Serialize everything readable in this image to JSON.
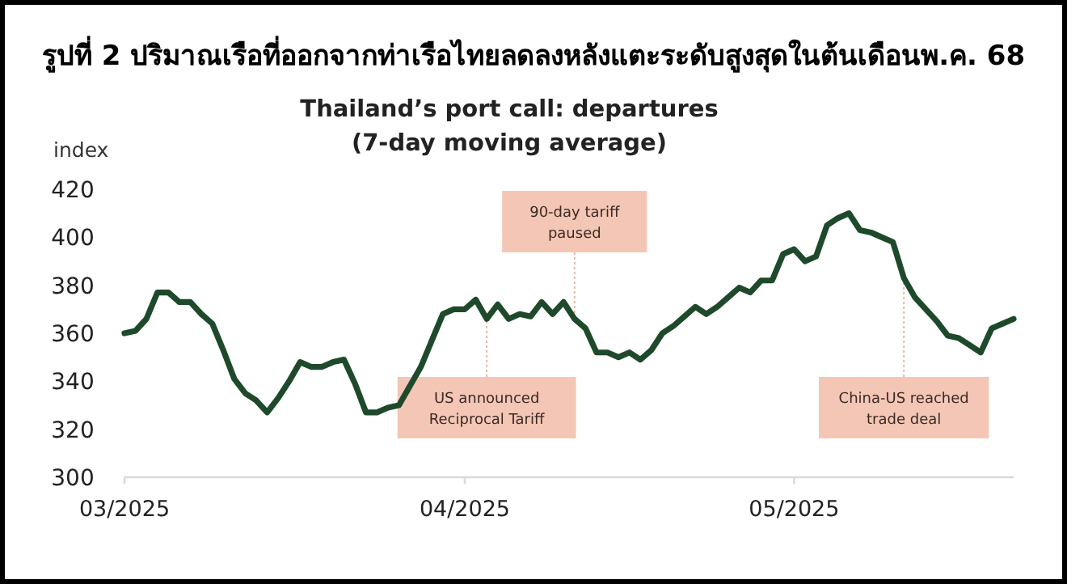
{
  "chart_data": {
    "type": "line",
    "title": "รูปที่ 2 ปริมาณเรือที่ออกจากท่าเรือไทยลดลงหลังแตะระดับสูงสุดในต้นเดือนพ.ค. 68",
    "subtitle": "Thailand’s port call: departures (7-day moving average)",
    "ylabel": "index",
    "color": "#1e4a2b",
    "x": [
      "2025-03-01",
      "2025-03-02",
      "2025-03-03",
      "2025-03-04",
      "2025-03-05",
      "2025-03-06",
      "2025-03-07",
      "2025-03-08",
      "2025-03-09",
      "2025-03-10",
      "2025-03-11",
      "2025-03-12",
      "2025-03-13",
      "2025-03-14",
      "2025-03-15",
      "2025-03-16",
      "2025-03-17",
      "2025-03-18",
      "2025-03-19",
      "2025-03-20",
      "2025-03-21",
      "2025-03-22",
      "2025-03-23",
      "2025-03-24",
      "2025-03-25",
      "2025-03-26",
      "2025-03-27",
      "2025-03-28",
      "2025-03-29",
      "2025-03-30",
      "2025-03-31",
      "2025-04-01",
      "2025-04-02",
      "2025-04-03",
      "2025-04-04",
      "2025-04-05",
      "2025-04-06",
      "2025-04-07",
      "2025-04-08",
      "2025-04-09",
      "2025-04-10",
      "2025-04-11",
      "2025-04-12",
      "2025-04-13",
      "2025-04-14",
      "2025-04-15",
      "2025-04-16",
      "2025-04-17",
      "2025-04-18",
      "2025-04-19",
      "2025-04-20",
      "2025-04-21",
      "2025-04-22",
      "2025-04-23",
      "2025-04-24",
      "2025-04-25",
      "2025-04-26",
      "2025-04-27",
      "2025-04-28",
      "2025-04-29",
      "2025-04-30",
      "2025-05-01",
      "2025-05-02",
      "2025-05-03",
      "2025-05-04",
      "2025-05-05",
      "2025-05-06",
      "2025-05-07",
      "2025-05-08",
      "2025-05-09",
      "2025-05-10",
      "2025-05-11",
      "2025-05-12",
      "2025-05-13",
      "2025-05-14",
      "2025-05-15",
      "2025-05-16",
      "2025-05-17",
      "2025-05-18",
      "2025-05-19",
      "2025-05-20",
      "2025-05-21"
    ],
    "values": [
      360,
      361,
      366,
      377,
      377,
      373,
      373,
      368,
      364,
      353,
      341,
      335,
      332,
      327,
      333,
      340,
      348,
      346,
      346,
      348,
      349,
      339,
      327,
      327,
      329,
      330,
      338,
      346,
      357,
      368,
      370,
      370,
      374,
      366,
      372,
      366,
      368,
      367,
      373,
      368,
      373,
      366,
      362,
      352,
      352,
      350,
      352,
      349,
      353,
      360,
      363,
      367,
      371,
      368,
      371,
      375,
      379,
      377,
      382,
      382,
      393,
      395,
      390,
      392,
      405,
      408,
      410,
      403,
      402,
      400,
      398,
      383,
      375,
      370,
      365,
      359,
      358,
      355,
      352,
      362,
      364,
      366
    ],
    "xlim": [
      "2025-03-01",
      "2025-05-21"
    ],
    "xticks": [
      {
        "value": "2025-03-01",
        "label": "03/2025"
      },
      {
        "value": "2025-04-01",
        "label": "04/2025"
      },
      {
        "value": "2025-05-01",
        "label": "05/2025"
      }
    ],
    "ylim": [
      300,
      420
    ],
    "yticks": [
      300,
      320,
      340,
      360,
      380,
      400,
      420
    ],
    "annotations": [
      {
        "text": "US announced Reciprocal Tariff",
        "x": "2025-04-03",
        "y": 366
      },
      {
        "text": "90-day tariff paused",
        "x": "2025-04-11",
        "y": 366
      },
      {
        "text": "China-US reached trade deal",
        "x": "2025-05-11",
        "y": 383
      }
    ]
  }
}
